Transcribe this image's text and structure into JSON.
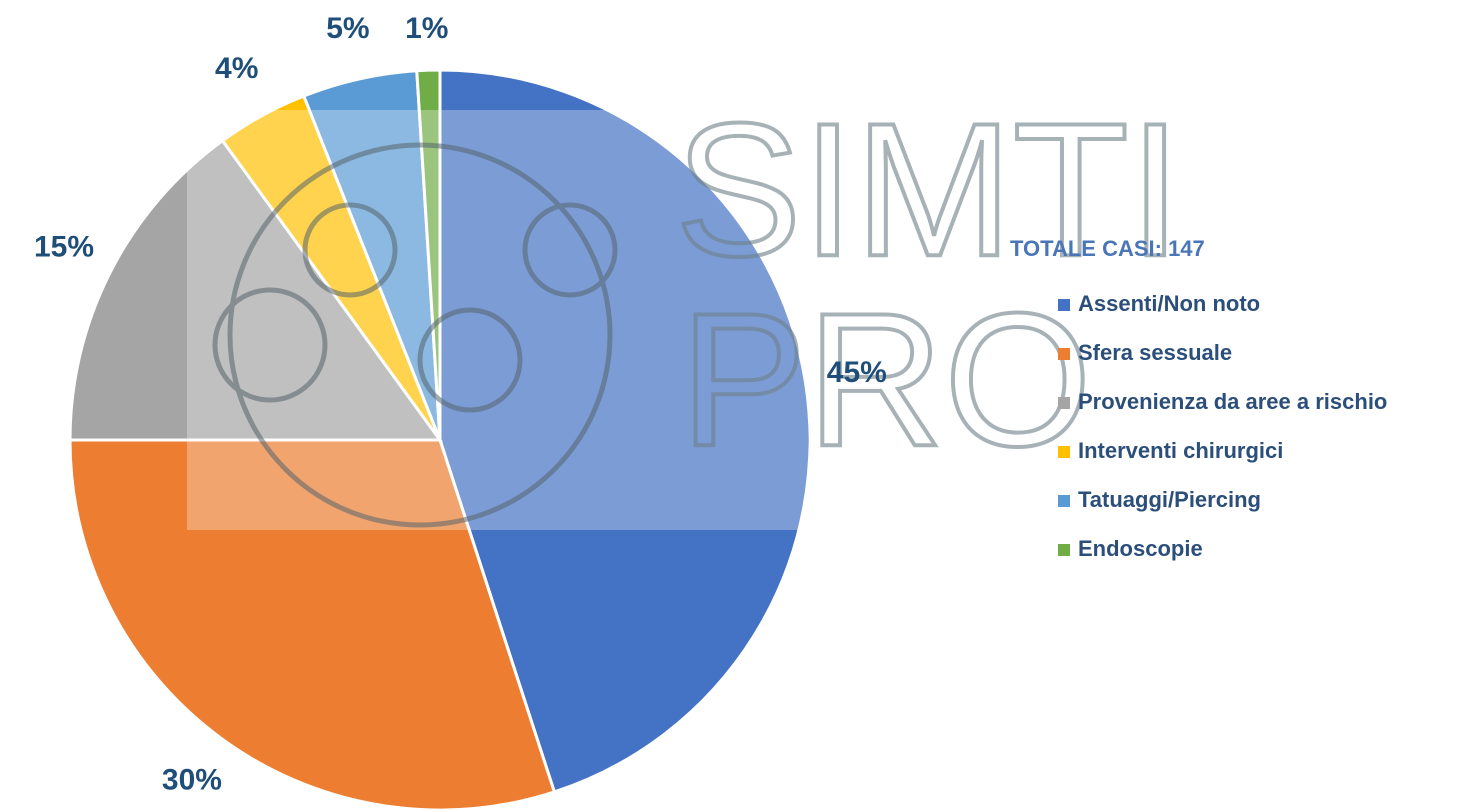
{
  "chart_data": {
    "type": "pie",
    "categories": [
      "Assenti/Non noto",
      "Sfera sessuale",
      "Provenienza da aree a rischio",
      "Interventi chirurgici",
      "Tatuaggi/Piercing",
      "Endoscopie"
    ],
    "values": [
      45,
      30,
      15,
      4,
      5,
      1
    ],
    "value_labels": [
      "45%",
      "30%",
      "15%",
      "4%",
      "5%",
      "1%"
    ],
    "colors": [
      "#4472c4",
      "#ed7d31",
      "#a5a5a5",
      "#ffc000",
      "#5b9bd5",
      "#70ad47"
    ],
    "legend_title": "TOTALE CASI: 147",
    "legend": "right",
    "watermark": [
      "SIMTI",
      "PRO"
    ]
  }
}
